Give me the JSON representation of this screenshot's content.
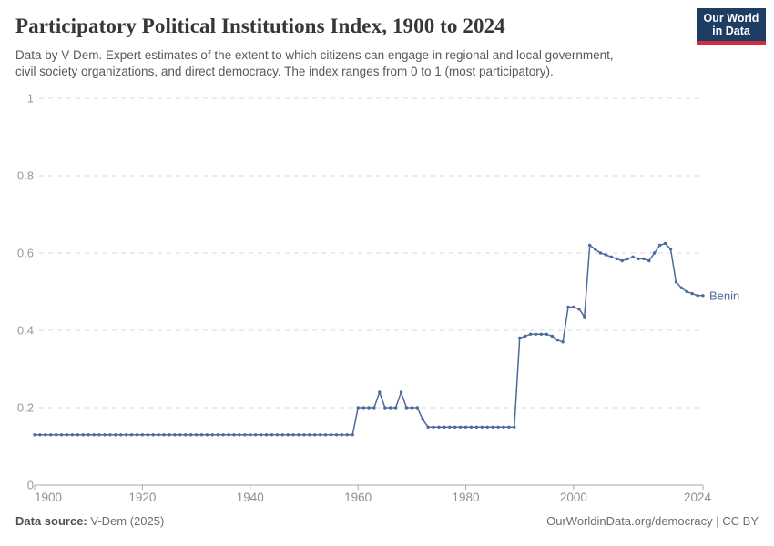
{
  "header": {
    "title": "Participatory Political Institutions Index, 1900 to 2024",
    "subtitle_line1": "Data by V-Dem. Expert estimates of the extent to which citizens can engage in regional and local government,",
    "subtitle_line2": "civil society organizations, and direct democracy. The index ranges from 0 to 1 (most participatory).",
    "logo": {
      "line1": "Our World",
      "line2": "in Data",
      "bg_color": "#1d3d63",
      "bar_color": "#cf2e3c"
    }
  },
  "chart_data": {
    "type": "line",
    "title": "Participatory Political Institutions Index, 1900 to 2024",
    "xlabel": "",
    "ylabel": "",
    "xlim": [
      1900,
      2024
    ],
    "ylim": [
      0,
      1
    ],
    "grid": "horizontal-dashed",
    "legend_position": "end-of-line",
    "x_ticks": [
      1900,
      1920,
      1940,
      1960,
      1980,
      2000,
      2024
    ],
    "y_ticks": [
      {
        "value": 0,
        "label": "0"
      },
      {
        "value": 0.2,
        "label": "0.2"
      },
      {
        "value": 0.4,
        "label": "0.4"
      },
      {
        "value": 0.6,
        "label": "0.6"
      },
      {
        "value": 0.8,
        "label": "0.8"
      },
      {
        "value": 1,
        "label": "1"
      }
    ],
    "series": [
      {
        "name": "Benin",
        "color": "#4c6a9c",
        "points": [
          [
            1900,
            0.13
          ],
          [
            1901,
            0.13
          ],
          [
            1902,
            0.13
          ],
          [
            1903,
            0.13
          ],
          [
            1904,
            0.13
          ],
          [
            1905,
            0.13
          ],
          [
            1906,
            0.13
          ],
          [
            1907,
            0.13
          ],
          [
            1908,
            0.13
          ],
          [
            1909,
            0.13
          ],
          [
            1910,
            0.13
          ],
          [
            1911,
            0.13
          ],
          [
            1912,
            0.13
          ],
          [
            1913,
            0.13
          ],
          [
            1914,
            0.13
          ],
          [
            1915,
            0.13
          ],
          [
            1916,
            0.13
          ],
          [
            1917,
            0.13
          ],
          [
            1918,
            0.13
          ],
          [
            1919,
            0.13
          ],
          [
            1920,
            0.13
          ],
          [
            1921,
            0.13
          ],
          [
            1922,
            0.13
          ],
          [
            1923,
            0.13
          ],
          [
            1924,
            0.13
          ],
          [
            1925,
            0.13
          ],
          [
            1926,
            0.13
          ],
          [
            1927,
            0.13
          ],
          [
            1928,
            0.13
          ],
          [
            1929,
            0.13
          ],
          [
            1930,
            0.13
          ],
          [
            1931,
            0.13
          ],
          [
            1932,
            0.13
          ],
          [
            1933,
            0.13
          ],
          [
            1934,
            0.13
          ],
          [
            1935,
            0.13
          ],
          [
            1936,
            0.13
          ],
          [
            1937,
            0.13
          ],
          [
            1938,
            0.13
          ],
          [
            1939,
            0.13
          ],
          [
            1940,
            0.13
          ],
          [
            1941,
            0.13
          ],
          [
            1942,
            0.13
          ],
          [
            1943,
            0.13
          ],
          [
            1944,
            0.13
          ],
          [
            1945,
            0.13
          ],
          [
            1946,
            0.13
          ],
          [
            1947,
            0.13
          ],
          [
            1948,
            0.13
          ],
          [
            1949,
            0.13
          ],
          [
            1950,
            0.13
          ],
          [
            1951,
            0.13
          ],
          [
            1952,
            0.13
          ],
          [
            1953,
            0.13
          ],
          [
            1954,
            0.13
          ],
          [
            1955,
            0.13
          ],
          [
            1956,
            0.13
          ],
          [
            1957,
            0.13
          ],
          [
            1958,
            0.13
          ],
          [
            1959,
            0.13
          ],
          [
            1960,
            0.2
          ],
          [
            1961,
            0.2
          ],
          [
            1962,
            0.2
          ],
          [
            1963,
            0.2
          ],
          [
            1964,
            0.24
          ],
          [
            1965,
            0.2
          ],
          [
            1966,
            0.2
          ],
          [
            1967,
            0.2
          ],
          [
            1968,
            0.24
          ],
          [
            1969,
            0.2
          ],
          [
            1970,
            0.2
          ],
          [
            1971,
            0.2
          ],
          [
            1972,
            0.17
          ],
          [
            1973,
            0.15
          ],
          [
            1974,
            0.15
          ],
          [
            1975,
            0.15
          ],
          [
            1976,
            0.15
          ],
          [
            1977,
            0.15
          ],
          [
            1978,
            0.15
          ],
          [
            1979,
            0.15
          ],
          [
            1980,
            0.15
          ],
          [
            1981,
            0.15
          ],
          [
            1982,
            0.15
          ],
          [
            1983,
            0.15
          ],
          [
            1984,
            0.15
          ],
          [
            1985,
            0.15
          ],
          [
            1986,
            0.15
          ],
          [
            1987,
            0.15
          ],
          [
            1988,
            0.15
          ],
          [
            1989,
            0.15
          ],
          [
            1990,
            0.38
          ],
          [
            1991,
            0.385
          ],
          [
            1992,
            0.39
          ],
          [
            1993,
            0.39
          ],
          [
            1994,
            0.39
          ],
          [
            1995,
            0.39
          ],
          [
            1996,
            0.385
          ],
          [
            1997,
            0.375
          ],
          [
            1998,
            0.37
          ],
          [
            1999,
            0.46
          ],
          [
            2000,
            0.46
          ],
          [
            2001,
            0.455
          ],
          [
            2002,
            0.435
          ],
          [
            2003,
            0.62
          ],
          [
            2004,
            0.61
          ],
          [
            2005,
            0.6
          ],
          [
            2006,
            0.595
          ],
          [
            2007,
            0.59
          ],
          [
            2008,
            0.585
          ],
          [
            2009,
            0.58
          ],
          [
            2010,
            0.585
          ],
          [
            2011,
            0.59
          ],
          [
            2012,
            0.585
          ],
          [
            2013,
            0.585
          ],
          [
            2014,
            0.58
          ],
          [
            2015,
            0.6
          ],
          [
            2016,
            0.62
          ],
          [
            2017,
            0.625
          ],
          [
            2018,
            0.61
          ],
          [
            2019,
            0.525
          ],
          [
            2020,
            0.51
          ],
          [
            2021,
            0.5
          ],
          [
            2022,
            0.495
          ],
          [
            2023,
            0.49
          ],
          [
            2024,
            0.49
          ]
        ]
      }
    ]
  },
  "footer": {
    "source_label": "Data source:",
    "source_value": " V-Dem (2025)",
    "right_text": "OurWorldinData.org/democracy | CC BY"
  }
}
